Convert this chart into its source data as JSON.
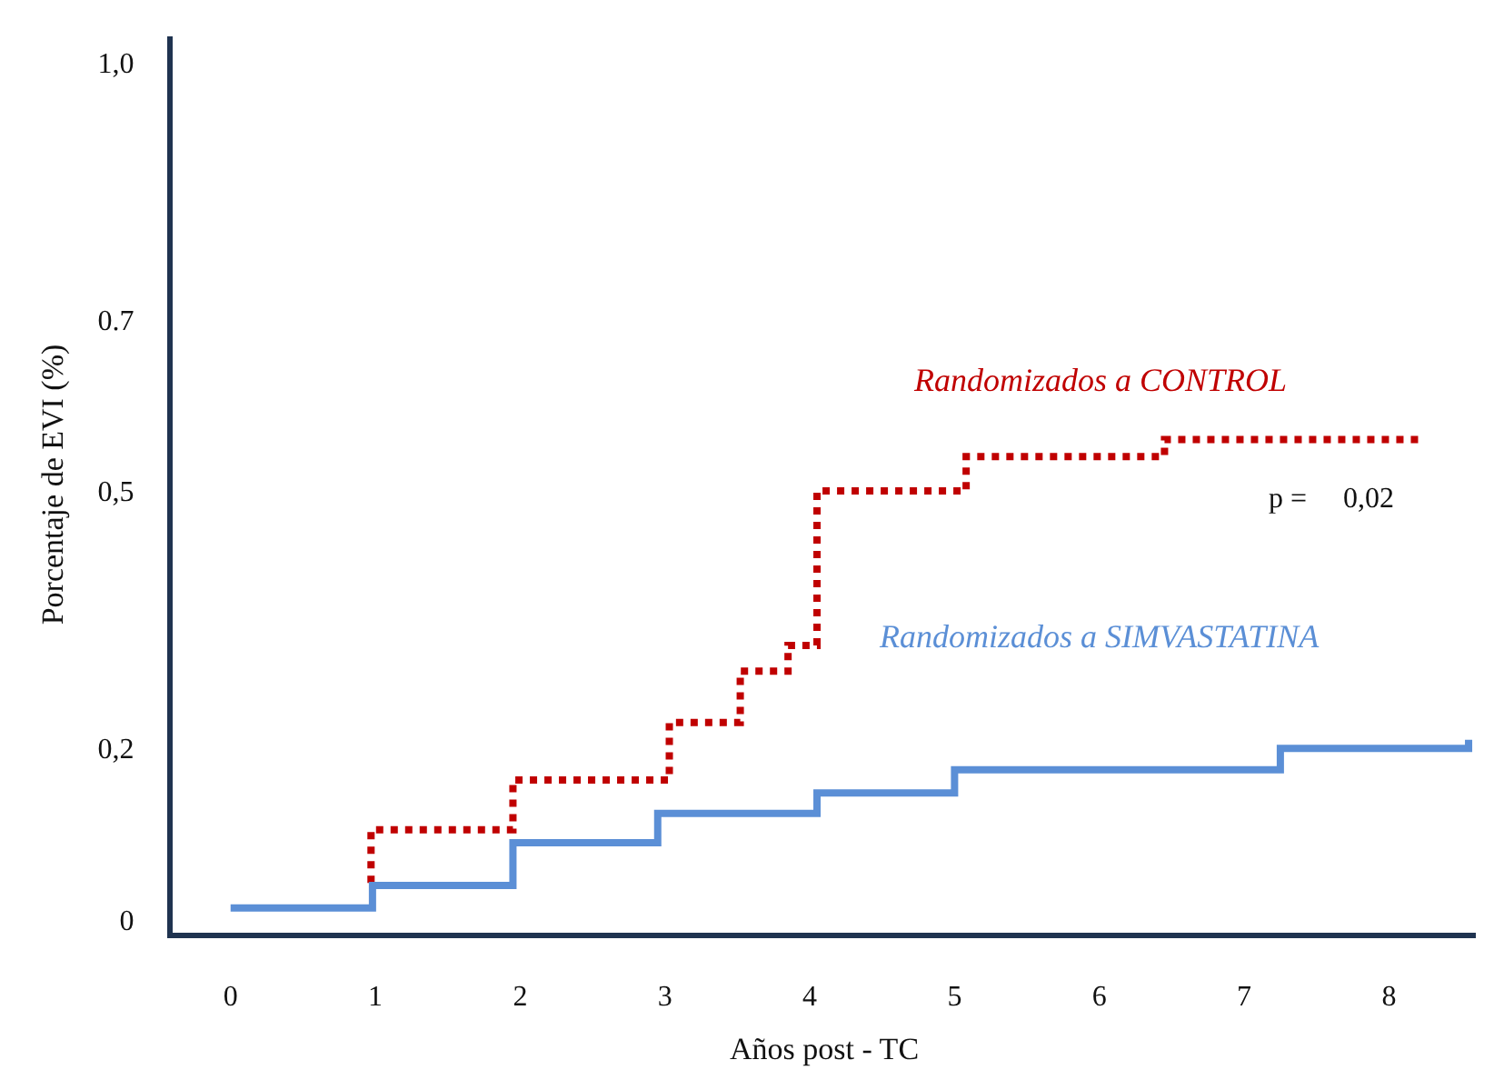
{
  "chart_data": {
    "type": "step",
    "xlabel": "Años post - TC",
    "ylabel": "Porcentaje de EVI (%)",
    "xlim": [
      -0.4,
      8.6
    ],
    "xticks": [
      0,
      1,
      2,
      3,
      4,
      5,
      6,
      7,
      8
    ],
    "ylim": [
      -0.015,
      1.03
    ],
    "yticks": [
      0,
      {
        "value": 0.2,
        "label": "0,2"
      },
      {
        "value": 0.5,
        "label": "0,5"
      },
      0.7,
      {
        "value": 1.0,
        "label": "1,0"
      }
    ],
    "grid": false,
    "legend": false,
    "marker": "none",
    "series": [
      {
        "name": "Randomizados a CONTROL",
        "color": "#c00000",
        "line_style": "dotted",
        "x": [
          0.97,
          0.97,
          1.95,
          3.03,
          3.52,
          3.85,
          4.05,
          5.08,
          6.45,
          8.23
        ],
        "values": [
          0.043,
          0.105,
          0.163,
          0.23,
          0.29,
          0.32,
          0.5,
          0.54,
          0.56,
          0.56
        ]
      },
      {
        "name": "Randomizados a SIMVASTATINA",
        "color": "#5b8fd6",
        "line_style": "solid",
        "x": [
          0,
          0.98,
          1.95,
          2.95,
          4.05,
          5.0,
          7.25,
          8.55
        ],
        "values": [
          0.014,
          0.04,
          0.09,
          0.124,
          0.148,
          0.175,
          0.2,
          0.21
        ]
      }
    ],
    "annotations": [
      "p =     0,02"
    ]
  }
}
